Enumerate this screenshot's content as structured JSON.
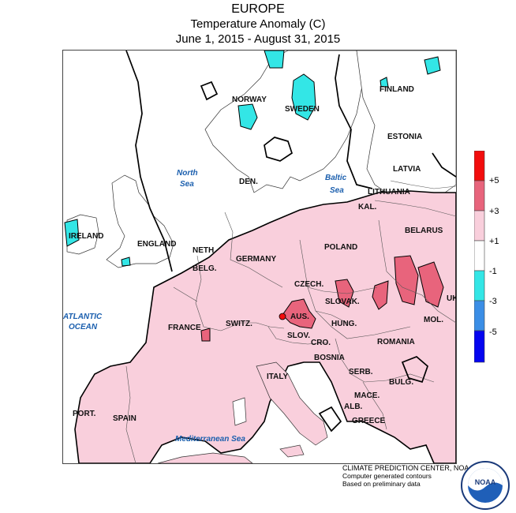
{
  "header": {
    "region": "EUROPE",
    "variable": "Temperature Anomaly (C)",
    "period": "June 1, 2015 - August 31, 2015"
  },
  "legend": {
    "colors": [
      "#f20d0d",
      "#e8647c",
      "#f9cfdc",
      "#ffffff",
      "#33e6e6",
      "#3b8ee6",
      "#0505f0"
    ],
    "labels": [
      "+5",
      "+3",
      "+1",
      "-1",
      "-3",
      "-5"
    ]
  },
  "map": {
    "countries": [
      "FINLAND",
      "NORWAY",
      "SWEDEN",
      "ESTONIA",
      "LATVIA",
      "DEN.",
      "LITHUANIA",
      "KAL.",
      "IRELAND",
      "ENGLAND",
      "NETH.",
      "BELARUS",
      "POLAND",
      "GERMANY",
      "BELG.",
      "CZECH.",
      "SLOVAK.",
      "UKR.",
      "FRANCE",
      "SWITZ.",
      "AUS.",
      "HUNG.",
      "MOL.",
      "ROMANIA",
      "SLOV.",
      "CRO.",
      "BOSNIA",
      "SERB.",
      "ITALY",
      "BULG.",
      "MACE.",
      "ALB.",
      "GREECE",
      "PORT.",
      "SPAIN"
    ],
    "seas": [
      "North Sea",
      "Baltic Sea",
      "ATLANTIC OCEAN",
      "Mediterranean Sea"
    ]
  },
  "credit": {
    "line1": "CLIMATE PREDICTION CENTER, NOAA",
    "line2": "Computer generated contours",
    "line3": "Based on preliminary data"
  },
  "logo": {
    "text": "NOAA"
  }
}
